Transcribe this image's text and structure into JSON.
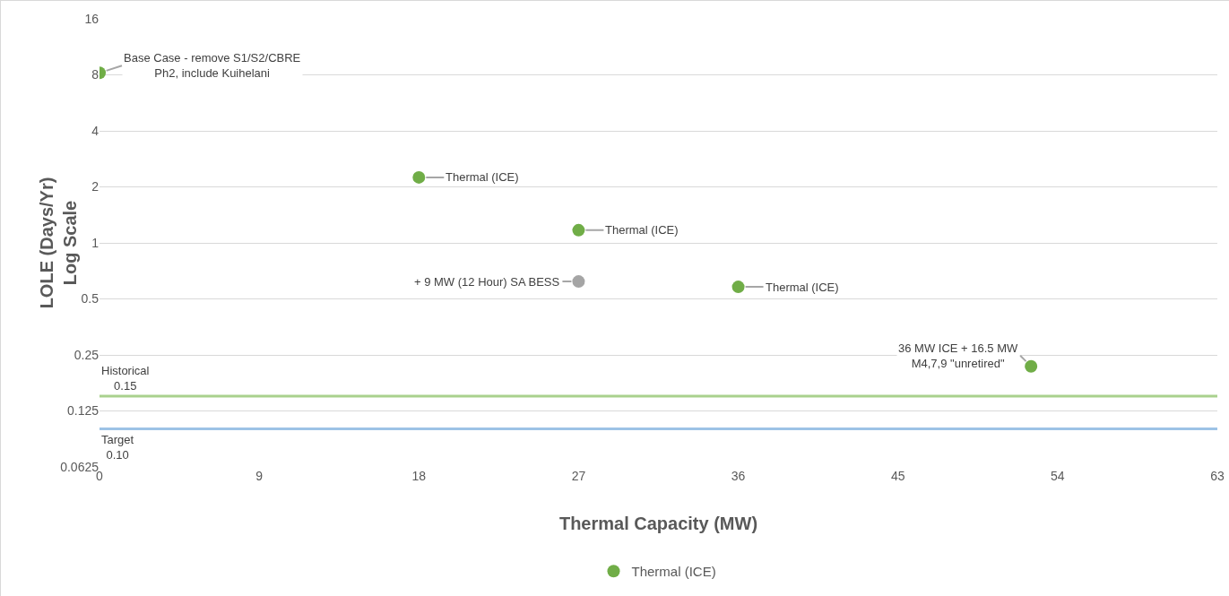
{
  "chart_data": {
    "type": "scatter",
    "xlabel": "Thermal Capacity (MW)",
    "ylabel": "LOLE (Days/Yr)\nLog Scale",
    "x": [
      0,
      18,
      27,
      36,
      52.5
    ],
    "series": [
      {
        "name": "Thermal (ICE)",
        "color": "#70ad47",
        "values": [
          8.2,
          2.25,
          1.17,
          0.58,
          0.217
        ]
      },
      {
        "color": "#a5a5a5",
        "x": [
          27
        ],
        "values": [
          0.62
        ]
      }
    ],
    "xlim": [
      0,
      63
    ],
    "xticks": [
      0,
      9,
      18,
      27,
      36,
      45,
      54,
      63
    ],
    "ylim": [
      0.0625,
      16
    ],
    "yticks": [
      0.0625,
      0.125,
      0.25,
      0.5,
      1,
      2,
      4,
      8,
      16
    ],
    "log": "y",
    "grid": "y",
    "legend": "bottom",
    "marker": "circle",
    "ref_lines": [
      {
        "axis": "y",
        "value": 0.15,
        "label": "Historical\n0.15",
        "color": "#a9d18e"
      },
      {
        "axis": "y",
        "value": 0.1,
        "label": "Target\n0.10",
        "color": "#9dc3e6"
      }
    ],
    "annotations": [
      {
        "text": "Base Case - remove S1/S2/CBRE\nPh2, include Kuihelani",
        "x": 0,
        "y": 8.2
      },
      {
        "text": "Thermal (ICE)",
        "x": 18,
        "y": 2.25
      },
      {
        "text": "Thermal (ICE)",
        "x": 27,
        "y": 1.17
      },
      {
        "text": "+ 9 MW (12 Hour) SA BESS",
        "x": 27,
        "y": 0.62
      },
      {
        "text": "Thermal (ICE)",
        "x": 36,
        "y": 0.58
      },
      {
        "text": "36 MW ICE + 16.5 MW\nM4,7,9 \"unretired\"",
        "x": 52.5,
        "y": 0.217
      }
    ]
  }
}
